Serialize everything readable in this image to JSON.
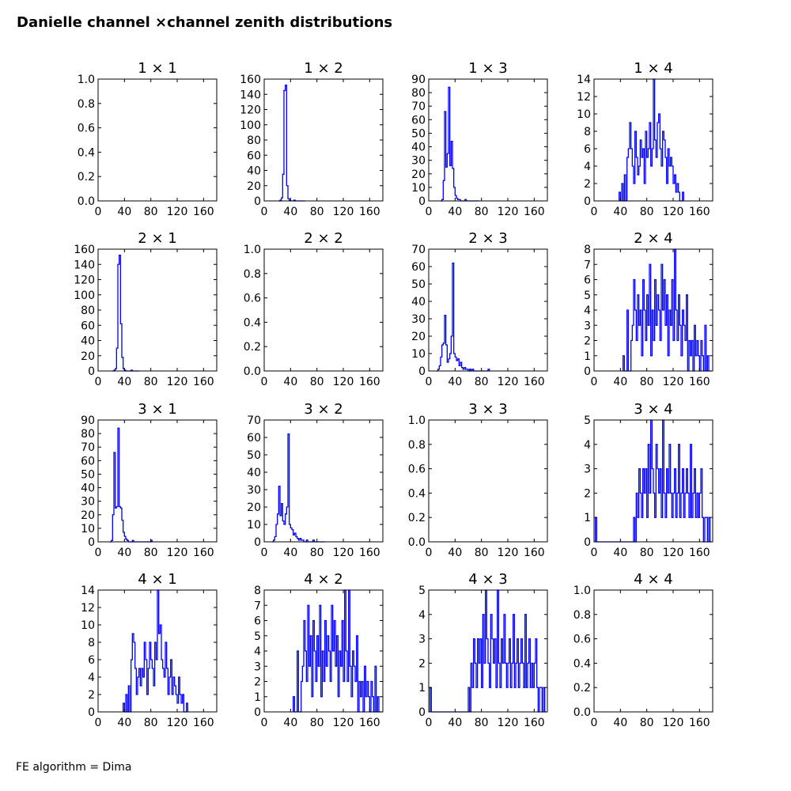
{
  "figure": {
    "title": "Danielle channel ×channel zenith distributions",
    "footer": "FE algorithm = Dima"
  },
  "style": {
    "line_color": "#0000ff",
    "axis_color": "#000000"
  },
  "chart_data": [
    {
      "type": "histogram",
      "title": "1  × 1",
      "xlim": [
        0,
        180
      ],
      "ylim": [
        0,
        1.0
      ],
      "xticks": [
        "0",
        "40",
        "80",
        "120",
        "160"
      ],
      "yticks": [
        "0.0",
        "0.2",
        "0.4",
        "0.6",
        "0.8",
        "1.0"
      ],
      "x": [],
      "values": []
    },
    {
      "type": "histogram",
      "title": "1  × 2",
      "xlim": [
        0,
        180
      ],
      "ylim": [
        0,
        160
      ],
      "xticks": [
        "0",
        "40",
        "80",
        "120",
        "160"
      ],
      "yticks": [
        "0",
        "20",
        "40",
        "60",
        "80",
        "100",
        "120",
        "140",
        "160"
      ],
      "x": [
        22,
        24,
        26,
        28,
        30,
        32,
        34,
        36,
        38,
        40,
        45,
        60
      ],
      "values": [
        0,
        1,
        4,
        35,
        145,
        152,
        20,
        3,
        1,
        0,
        1,
        0
      ]
    },
    {
      "type": "histogram",
      "title": "1  × 3",
      "xlim": [
        0,
        180
      ],
      "ylim": [
        0,
        90
      ],
      "xticks": [
        "0",
        "40",
        "80",
        "120",
        "160"
      ],
      "yticks": [
        "0",
        "10",
        "20",
        "30",
        "40",
        "50",
        "60",
        "70",
        "80",
        "90"
      ],
      "x": [
        18,
        20,
        22,
        24,
        26,
        28,
        30,
        32,
        34,
        36,
        38,
        40,
        42,
        44,
        46,
        50,
        55,
        75
      ],
      "values": [
        0,
        1,
        15,
        66,
        25,
        35,
        84,
        26,
        44,
        24,
        10,
        4,
        2,
        1,
        1,
        0,
        1,
        0
      ]
    },
    {
      "type": "histogram",
      "title": "1  × 4",
      "xlim": [
        0,
        180
      ],
      "ylim": [
        0,
        14
      ],
      "xticks": [
        "0",
        "40",
        "80",
        "120",
        "160"
      ],
      "yticks": [
        "0",
        "2",
        "4",
        "6",
        "8",
        "10",
        "12",
        "14"
      ],
      "x": [
        38,
        42,
        46,
        50,
        52,
        54,
        56,
        58,
        60,
        62,
        64,
        66,
        68,
        70,
        72,
        74,
        76,
        78,
        80,
        82,
        84,
        86,
        88,
        90,
        92,
        94,
        96,
        98,
        100,
        102,
        104,
        106,
        108,
        110,
        112,
        114,
        116,
        118,
        120,
        122,
        124,
        126,
        128,
        130,
        134
      ],
      "values": [
        1,
        2,
        3,
        5,
        6,
        9,
        6,
        4,
        2,
        8,
        5,
        3,
        4,
        7,
        5,
        6,
        2,
        8,
        5,
        6,
        9,
        4,
        6,
        14,
        7,
        5,
        9,
        10,
        6,
        4,
        8,
        7,
        5,
        2,
        6,
        4,
        5,
        4,
        2,
        3,
        1,
        2,
        1,
        0,
        1
      ]
    },
    {
      "type": "histogram",
      "title": "2  × 1",
      "xlim": [
        0,
        180
      ],
      "ylim": [
        0,
        160
      ],
      "xticks": [
        "0",
        "40",
        "80",
        "120",
        "160"
      ],
      "yticks": [
        "0",
        "20",
        "40",
        "60",
        "80",
        "100",
        "120",
        "140",
        "160"
      ],
      "x": [
        22,
        24,
        26,
        28,
        30,
        32,
        34,
        36,
        38,
        40,
        50,
        60
      ],
      "values": [
        0,
        1,
        3,
        30,
        140,
        152,
        62,
        18,
        3,
        1,
        1,
        0
      ]
    },
    {
      "type": "histogram",
      "title": "2  × 2",
      "xlim": [
        0,
        180
      ],
      "ylim": [
        0,
        1.0
      ],
      "xticks": [
        "0",
        "40",
        "80",
        "120",
        "160"
      ],
      "yticks": [
        "0.0",
        "0.2",
        "0.4",
        "0.6",
        "0.8",
        "1.0"
      ],
      "x": [],
      "values": []
    },
    {
      "type": "histogram",
      "title": "2  × 3",
      "xlim": [
        0,
        180
      ],
      "ylim": [
        0,
        70
      ],
      "xticks": [
        "0",
        "40",
        "80",
        "120",
        "160"
      ],
      "yticks": [
        "0",
        "10",
        "20",
        "30",
        "40",
        "50",
        "60",
        "70"
      ],
      "x": [
        12,
        14,
        16,
        18,
        20,
        22,
        24,
        26,
        28,
        30,
        32,
        34,
        36,
        38,
        40,
        42,
        44,
        46,
        48,
        50,
        52,
        54,
        56,
        58,
        60,
        62,
        64,
        66,
        70,
        75,
        90
      ],
      "values": [
        0,
        1,
        3,
        8,
        15,
        16,
        32,
        15,
        5,
        7,
        10,
        20,
        62,
        10,
        8,
        6,
        7,
        3,
        5,
        2,
        1,
        2,
        1,
        1,
        0,
        1,
        0,
        1,
        0,
        0,
        1
      ]
    },
    {
      "type": "histogram",
      "title": "2  × 4",
      "xlim": [
        0,
        180
      ],
      "ylim": [
        0,
        8
      ],
      "xticks": [
        "0",
        "40",
        "80",
        "120",
        "160"
      ],
      "yticks": [
        "0",
        "1",
        "2",
        "3",
        "4",
        "5",
        "6",
        "7",
        "8"
      ],
      "x": [
        44,
        48,
        50,
        52,
        56,
        58,
        60,
        62,
        64,
        66,
        68,
        70,
        72,
        74,
        76,
        78,
        80,
        82,
        84,
        86,
        88,
        90,
        92,
        94,
        96,
        98,
        100,
        102,
        104,
        106,
        108,
        110,
        112,
        114,
        116,
        118,
        120,
        122,
        124,
        126,
        128,
        130,
        132,
        134,
        136,
        138,
        140,
        142,
        144,
        146,
        148,
        150,
        152,
        154,
        156,
        158,
        160,
        162,
        164,
        166,
        168,
        170,
        172,
        174,
        176
      ],
      "values": [
        1,
        0,
        4,
        0,
        2,
        3,
        6,
        4,
        2,
        5,
        3,
        4,
        1,
        6,
        4,
        2,
        5,
        3,
        7,
        1,
        4,
        2,
        6,
        3,
        5,
        4,
        2,
        7,
        4,
        6,
        3,
        5,
        1,
        4,
        3,
        6,
        2,
        8,
        4,
        2,
        5,
        3,
        1,
        4,
        3,
        2,
        5,
        0,
        2,
        1,
        2,
        0,
        3,
        1,
        2,
        1,
        0,
        2,
        1,
        0,
        3,
        0,
        1,
        0,
        0
      ]
    },
    {
      "type": "histogram",
      "title": "3  × 1",
      "xlim": [
        0,
        180
      ],
      "ylim": [
        0,
        90
      ],
      "xticks": [
        "0",
        "40",
        "80",
        "120",
        "160"
      ],
      "yticks": [
        "0",
        "10",
        "20",
        "30",
        "40",
        "50",
        "60",
        "70",
        "80",
        "90"
      ],
      "x": [
        18,
        20,
        22,
        24,
        26,
        28,
        30,
        32,
        34,
        36,
        38,
        40,
        42,
        44,
        48,
        52,
        60,
        70,
        80
      ],
      "values": [
        0,
        1,
        20,
        66,
        25,
        26,
        84,
        26,
        25,
        16,
        7,
        4,
        2,
        1,
        0,
        1,
        0,
        0,
        1
      ]
    },
    {
      "type": "histogram",
      "title": "3  × 2",
      "xlim": [
        0,
        180
      ],
      "ylim": [
        0,
        70
      ],
      "xticks": [
        "0",
        "40",
        "80",
        "120",
        "160"
      ],
      "yticks": [
        "0",
        "10",
        "20",
        "30",
        "40",
        "50",
        "60",
        "70"
      ],
      "x": [
        12,
        14,
        16,
        18,
        20,
        22,
        24,
        26,
        28,
        30,
        32,
        34,
        36,
        38,
        40,
        42,
        44,
        46,
        48,
        50,
        52,
        54,
        56,
        58,
        60,
        64,
        68,
        74,
        90
      ],
      "values": [
        0,
        1,
        3,
        10,
        16,
        32,
        15,
        22,
        12,
        10,
        16,
        20,
        62,
        10,
        8,
        7,
        4,
        5,
        3,
        2,
        1,
        2,
        1,
        1,
        0,
        1,
        0,
        1,
        0
      ]
    },
    {
      "type": "histogram",
      "title": "3  × 3",
      "xlim": [
        0,
        180
      ],
      "ylim": [
        0,
        1.0
      ],
      "xticks": [
        "0",
        "40",
        "80",
        "120",
        "160"
      ],
      "yticks": [
        "0.0",
        "0.2",
        "0.4",
        "0.6",
        "0.8",
        "1.0"
      ],
      "x": [],
      "values": []
    },
    {
      "type": "histogram",
      "title": "3  × 4",
      "xlim": [
        0,
        180
      ],
      "ylim": [
        0,
        5
      ],
      "xticks": [
        "0",
        "40",
        "80",
        "120",
        "160"
      ],
      "yticks": [
        "0",
        "1",
        "2",
        "3",
        "4",
        "5"
      ],
      "x": [
        2,
        4,
        60,
        62,
        64,
        66,
        68,
        70,
        72,
        74,
        76,
        78,
        80,
        82,
        84,
        86,
        88,
        90,
        92,
        94,
        96,
        98,
        100,
        102,
        104,
        106,
        108,
        110,
        112,
        114,
        116,
        118,
        120,
        122,
        124,
        126,
        128,
        130,
        132,
        134,
        136,
        138,
        140,
        142,
        144,
        146,
        148,
        150,
        152,
        154,
        156,
        158,
        160,
        162,
        164,
        166,
        168,
        170,
        172,
        174,
        176
      ],
      "values": [
        1,
        0,
        1,
        0,
        2,
        1,
        3,
        2,
        1,
        3,
        2,
        3,
        1,
        4,
        2,
        5,
        3,
        2,
        1,
        4,
        3,
        2,
        3,
        1,
        5,
        2,
        1,
        3,
        2,
        4,
        2,
        1,
        2,
        3,
        1,
        2,
        4,
        1,
        2,
        3,
        1,
        2,
        3,
        2,
        1,
        4,
        1,
        2,
        3,
        1,
        2,
        1,
        2,
        3,
        1,
        0,
        1,
        1,
        0,
        1,
        0
      ]
    },
    {
      "type": "histogram",
      "title": "4  × 1",
      "xlim": [
        0,
        180
      ],
      "ylim": [
        0,
        14
      ],
      "xticks": [
        "0",
        "40",
        "80",
        "120",
        "160"
      ],
      "yticks": [
        "0",
        "2",
        "4",
        "6",
        "8",
        "10",
        "12",
        "14"
      ],
      "x": [
        38,
        42,
        46,
        50,
        52,
        54,
        56,
        58,
        60,
        62,
        64,
        66,
        68,
        70,
        72,
        74,
        76,
        78,
        80,
        82,
        84,
        86,
        88,
        90,
        92,
        94,
        96,
        98,
        100,
        102,
        104,
        106,
        108,
        110,
        112,
        114,
        116,
        118,
        120,
        122,
        124,
        126,
        128,
        130,
        134
      ],
      "values": [
        1,
        2,
        3,
        6,
        9,
        8,
        5,
        2,
        4,
        5,
        3,
        5,
        4,
        8,
        6,
        2,
        5,
        8,
        6,
        5,
        3,
        8,
        6,
        14,
        9,
        10,
        6,
        5,
        4,
        8,
        5,
        2,
        4,
        6,
        2,
        4,
        3,
        2,
        1,
        4,
        2,
        1,
        2,
        0,
        1
      ]
    },
    {
      "type": "histogram",
      "title": "4  × 2",
      "xlim": [
        0,
        180
      ],
      "ylim": [
        0,
        8
      ],
      "xticks": [
        "0",
        "40",
        "80",
        "120",
        "160"
      ],
      "yticks": [
        "0",
        "1",
        "2",
        "3",
        "4",
        "5",
        "6",
        "7",
        "8"
      ],
      "x": [
        44,
        48,
        50,
        52,
        56,
        58,
        60,
        62,
        64,
        66,
        68,
        70,
        72,
        74,
        76,
        78,
        80,
        82,
        84,
        86,
        88,
        90,
        92,
        94,
        96,
        98,
        100,
        102,
        104,
        106,
        108,
        110,
        112,
        114,
        116,
        118,
        120,
        122,
        124,
        126,
        128,
        130,
        132,
        134,
        136,
        138,
        140,
        142,
        144,
        146,
        148,
        150,
        152,
        154,
        156,
        158,
        160,
        162,
        164,
        166,
        168,
        170,
        172,
        174,
        176
      ],
      "values": [
        1,
        0,
        4,
        0,
        2,
        3,
        6,
        4,
        2,
        7,
        3,
        5,
        1,
        6,
        4,
        2,
        5,
        3,
        7,
        1,
        4,
        2,
        6,
        3,
        5,
        4,
        2,
        7,
        4,
        6,
        3,
        5,
        1,
        4,
        3,
        6,
        2,
        8,
        4,
        2,
        8,
        3,
        1,
        4,
        3,
        2,
        5,
        0,
        2,
        1,
        2,
        0,
        3,
        1,
        2,
        1,
        0,
        2,
        1,
        0,
        3,
        0,
        1,
        0,
        0
      ]
    },
    {
      "type": "histogram",
      "title": "4  × 3",
      "xlim": [
        0,
        180
      ],
      "ylim": [
        0,
        5
      ],
      "xticks": [
        "0",
        "40",
        "80",
        "120",
        "160"
      ],
      "yticks": [
        "0",
        "1",
        "2",
        "3",
        "4",
        "5"
      ],
      "x": [
        2,
        4,
        60,
        62,
        64,
        66,
        68,
        70,
        72,
        74,
        76,
        78,
        80,
        82,
        84,
        86,
        88,
        90,
        92,
        94,
        96,
        98,
        100,
        102,
        104,
        106,
        108,
        110,
        112,
        114,
        116,
        118,
        120,
        122,
        124,
        126,
        128,
        130,
        132,
        134,
        136,
        138,
        140,
        142,
        144,
        146,
        148,
        150,
        152,
        154,
        156,
        158,
        160,
        162,
        164,
        166,
        168,
        170,
        172,
        174,
        176
      ],
      "values": [
        1,
        0,
        1,
        0,
        2,
        1,
        3,
        2,
        1,
        3,
        2,
        3,
        1,
        4,
        2,
        5,
        3,
        2,
        1,
        4,
        3,
        2,
        3,
        1,
        5,
        2,
        1,
        3,
        2,
        4,
        2,
        1,
        2,
        3,
        1,
        2,
        4,
        1,
        2,
        3,
        1,
        2,
        3,
        2,
        1,
        4,
        1,
        2,
        3,
        1,
        2,
        1,
        2,
        3,
        1,
        0,
        1,
        1,
        0,
        1,
        0
      ]
    },
    {
      "type": "histogram",
      "title": "4  × 4",
      "xlim": [
        0,
        180
      ],
      "ylim": [
        0,
        1.0
      ],
      "xticks": [
        "0",
        "40",
        "80",
        "120",
        "160"
      ],
      "yticks": [
        "0.0",
        "0.2",
        "0.4",
        "0.6",
        "0.8",
        "1.0"
      ],
      "x": [],
      "values": []
    }
  ]
}
